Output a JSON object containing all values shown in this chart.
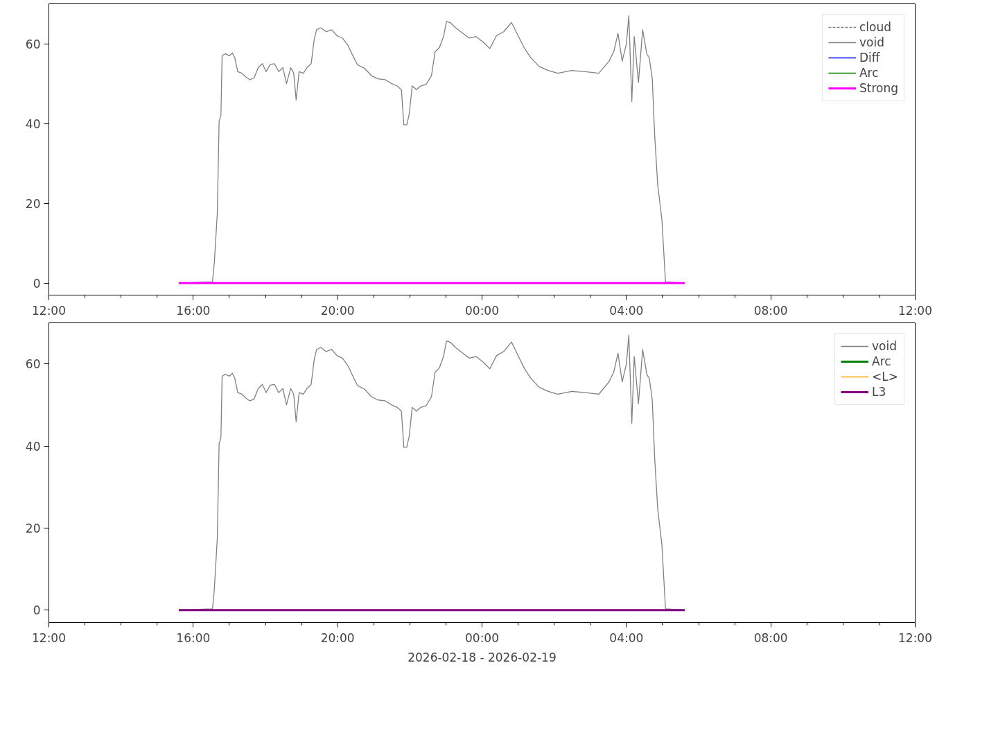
{
  "chart_data": [
    {
      "type": "line",
      "xlim": [
        "2026-02-18T12:00",
        "2026-02-19T12:00"
      ],
      "ylim": [
        -3,
        70
      ],
      "yticks": [
        0,
        20,
        40,
        60
      ],
      "xticks": [
        {
          "value": "2026-02-18T12:00",
          "label": "12:00"
        },
        {
          "value": "2026-02-18T13:00",
          "label": null
        },
        {
          "value": "2026-02-18T14:00",
          "label": null
        },
        {
          "value": "2026-02-18T15:00",
          "label": null
        },
        {
          "value": "2026-02-18T16:00",
          "label": "16:00"
        },
        {
          "value": "2026-02-18T17:00",
          "label": null
        },
        {
          "value": "2026-02-18T18:00",
          "label": null
        },
        {
          "value": "2026-02-18T19:00",
          "label": null
        },
        {
          "value": "2026-02-18T20:00",
          "label": "20:00"
        },
        {
          "value": "2026-02-18T21:00",
          "label": null
        },
        {
          "value": "2026-02-18T22:00",
          "label": null
        },
        {
          "value": "2026-02-18T23:00",
          "label": null
        },
        {
          "value": "2026-02-19T00:00",
          "label": "00:00"
        },
        {
          "value": "2026-02-19T01:00",
          "label": null
        },
        {
          "value": "2026-02-19T02:00",
          "label": null
        },
        {
          "value": "2026-02-19T03:00",
          "label": null
        },
        {
          "value": "2026-02-19T04:00",
          "label": "04:00"
        },
        {
          "value": "2026-02-19T05:00",
          "label": null
        },
        {
          "value": "2026-02-19T06:00",
          "label": null
        },
        {
          "value": "2026-02-19T07:00",
          "label": null
        },
        {
          "value": "2026-02-19T08:00",
          "label": "08:00"
        },
        {
          "value": "2026-02-19T09:00",
          "label": null
        },
        {
          "value": "2026-02-19T10:00",
          "label": null
        },
        {
          "value": "2026-02-19T11:00",
          "label": null
        },
        {
          "value": "2026-02-19T12:00",
          "label": "12:00"
        }
      ],
      "legend": "top right",
      "grid": false,
      "x": [
        "2026-02-18T15:36",
        "2026-02-18T16:32",
        "2026-02-18T16:35",
        "2026-02-18T16:40",
        "2026-02-18T16:43",
        "2026-02-18T16:46",
        "2026-02-18T16:48",
        "2026-02-18T16:53",
        "2026-02-18T17:00",
        "2026-02-18T17:05",
        "2026-02-18T17:09",
        "2026-02-18T17:14",
        "2026-02-18T17:21",
        "2026-02-18T17:27",
        "2026-02-18T17:34",
        "2026-02-18T17:41",
        "2026-02-18T17:48",
        "2026-02-18T17:55",
        "2026-02-18T18:01",
        "2026-02-18T18:08",
        "2026-02-18T18:15",
        "2026-02-18T18:22",
        "2026-02-18T18:29",
        "2026-02-18T18:35",
        "2026-02-18T18:42",
        "2026-02-18T18:47",
        "2026-02-18T18:51",
        "2026-02-18T18:56",
        "2026-02-18T19:03",
        "2026-02-18T19:09",
        "2026-02-18T19:16",
        "2026-02-18T19:21",
        "2026-02-18T19:25",
        "2026-02-18T19:32",
        "2026-02-18T19:41",
        "2026-02-18T19:50",
        "2026-02-18T19:59",
        "2026-02-18T20:08",
        "2026-02-18T20:17",
        "2026-02-18T20:24",
        "2026-02-18T20:33",
        "2026-02-18T20:45",
        "2026-02-18T20:56",
        "2026-02-18T21:07",
        "2026-02-18T21:19",
        "2026-02-18T21:30",
        "2026-02-18T21:39",
        "2026-02-18T21:46",
        "2026-02-18T21:50",
        "2026-02-18T21:55",
        "2026-02-18T21:59",
        "2026-02-18T22:04",
        "2026-02-18T22:11",
        "2026-02-18T22:18",
        "2026-02-18T22:27",
        "2026-02-18T22:36",
        "2026-02-18T22:42",
        "2026-02-18T22:49",
        "2026-02-18T22:56",
        "2026-02-18T23:01",
        "2026-02-18T23:07",
        "2026-02-18T23:16",
        "2026-02-18T23:28",
        "2026-02-18T23:39",
        "2026-02-18T23:50",
        "2026-02-19T00:02",
        "2026-02-19T00:13",
        "2026-02-19T00:24",
        "2026-02-19T00:36",
        "2026-02-19T00:49",
        "2026-02-19T00:58",
        "2026-02-19T01:10",
        "2026-02-19T01:21",
        "2026-02-19T01:35",
        "2026-02-19T01:50",
        "2026-02-19T02:06",
        "2026-02-19T02:29",
        "2026-02-19T02:52",
        "2026-02-19T03:14",
        "2026-02-19T03:31",
        "2026-02-19T03:39",
        "2026-02-19T03:46",
        "2026-02-19T03:53",
        "2026-02-19T04:00",
        "2026-02-19T04:04",
        "2026-02-19T04:09",
        "2026-02-19T04:13",
        "2026-02-19T04:20",
        "2026-02-19T04:27",
        "2026-02-19T04:34",
        "2026-02-19T04:38",
        "2026-02-19T04:43",
        "2026-02-19T04:47",
        "2026-02-19T04:52",
        "2026-02-19T04:59",
        "2026-02-19T05:05",
        "2026-02-19T05:37"
      ],
      "series": [
        {
          "name": "cloud",
          "color": "#808080",
          "line_style": "dashed",
          "values": [
            null,
            null,
            null,
            null,
            null,
            null,
            null,
            null,
            null,
            null,
            null,
            null,
            null,
            null,
            null,
            null,
            null,
            null,
            null,
            null,
            null,
            null,
            null,
            null,
            null,
            null,
            null,
            null,
            null,
            null,
            null,
            null,
            null,
            null,
            null,
            null,
            null,
            null,
            null,
            null,
            null,
            null,
            null,
            null,
            null,
            null,
            null,
            null,
            null,
            null,
            null,
            null,
            null,
            null,
            null,
            null,
            null,
            null,
            null,
            null,
            null,
            null,
            null,
            null,
            null,
            null,
            null,
            null,
            null,
            null,
            null,
            null,
            null,
            null,
            null,
            null,
            null,
            null,
            null,
            null,
            null,
            null,
            null,
            null,
            null,
            null,
            null,
            null,
            null,
            null,
            null,
            null,
            null,
            null,
            null,
            null,
            null
          ]
        },
        {
          "name": "void",
          "color": "#808080",
          "values": [
            0,
            0.3,
            5,
            17.6,
            40.6,
            42,
            57,
            57.5,
            57,
            57.7,
            56.5,
            53,
            52.6,
            51.7,
            51,
            51.4,
            54,
            55,
            53,
            54.8,
            55,
            53,
            54,
            50,
            54,
            52.6,
            45.9,
            53,
            52.6,
            54,
            55,
            61,
            63.5,
            64,
            63,
            63.5,
            62,
            61.4,
            59.6,
            57.4,
            54.7,
            53.8,
            52,
            51.2,
            51,
            50,
            49.4,
            48.5,
            39.7,
            39.7,
            42.4,
            49.4,
            48.5,
            49.4,
            49.8,
            52,
            58,
            59,
            61.8,
            65.6,
            65.3,
            64,
            62.6,
            61.4,
            61.8,
            60.4,
            58.8,
            62,
            63,
            65.3,
            62.6,
            59,
            56.5,
            54.3,
            53.3,
            52.6,
            53.3,
            53,
            52.6,
            55.6,
            58,
            62.6,
            55.6,
            60,
            67,
            45.5,
            61.8,
            50.3,
            63.5,
            57.4,
            56.5,
            51.2,
            37,
            24.7,
            15.9,
            0.3,
            0
          ]
        },
        {
          "name": "Diff",
          "color": "#0000ff",
          "values": [
            null,
            null,
            null,
            null,
            null,
            null,
            null,
            null,
            null,
            null,
            null,
            null,
            null,
            null,
            null,
            null,
            null,
            null,
            null,
            null,
            null,
            null,
            null,
            null,
            null,
            null,
            null,
            null,
            null,
            null,
            null,
            null,
            null,
            null,
            null,
            null,
            null,
            null,
            null,
            null,
            null,
            null,
            null,
            null,
            null,
            null,
            null,
            null,
            null,
            null,
            null,
            null,
            null,
            null,
            null,
            null,
            null,
            null,
            null,
            null,
            null,
            null,
            null,
            null,
            null,
            null,
            null,
            null,
            null,
            null,
            null,
            null,
            null,
            null,
            null,
            null,
            null,
            null,
            null,
            null,
            null,
            null,
            null,
            null,
            null,
            null,
            null,
            null,
            null,
            null,
            null,
            null,
            null,
            null,
            null,
            null,
            null
          ]
        },
        {
          "name": "Arc",
          "color": "#008000",
          "values": [
            null,
            null,
            null,
            null,
            null,
            null,
            null,
            null,
            null,
            null,
            null,
            null,
            null,
            null,
            null,
            null,
            null,
            null,
            null,
            null,
            null,
            null,
            null,
            null,
            null,
            null,
            null,
            null,
            null,
            null,
            null,
            null,
            null,
            null,
            null,
            null,
            null,
            null,
            null,
            null,
            null,
            null,
            null,
            null,
            null,
            null,
            null,
            null,
            null,
            null,
            null,
            null,
            null,
            null,
            null,
            null,
            null,
            null,
            null,
            null,
            null,
            null,
            null,
            null,
            null,
            null,
            null,
            null,
            null,
            null,
            null,
            null,
            null,
            null,
            null,
            null,
            null,
            null,
            null,
            null,
            null,
            null,
            null,
            null,
            null,
            null,
            null,
            null,
            null,
            null,
            null,
            null,
            null,
            null,
            null,
            null,
            null
          ]
        },
        {
          "name": "Strong",
          "color": "#ff00ff",
          "x": [
            "2026-02-18T15:36",
            "2026-02-19T05:37"
          ],
          "values": [
            0,
            0
          ]
        }
      ]
    },
    {
      "type": "line",
      "xlim": [
        "2026-02-18T12:00",
        "2026-02-19T12:00"
      ],
      "ylim": [
        -3,
        70
      ],
      "yticks": [
        0,
        20,
        40,
        60
      ],
      "xlabel": "2026-02-18 - 2026-02-19",
      "xticks": [
        {
          "value": "2026-02-18T12:00",
          "label": "12:00"
        },
        {
          "value": "2026-02-18T13:00",
          "label": null
        },
        {
          "value": "2026-02-18T14:00",
          "label": null
        },
        {
          "value": "2026-02-18T15:00",
          "label": null
        },
        {
          "value": "2026-02-18T16:00",
          "label": "16:00"
        },
        {
          "value": "2026-02-18T17:00",
          "label": null
        },
        {
          "value": "2026-02-18T18:00",
          "label": null
        },
        {
          "value": "2026-02-18T19:00",
          "label": null
        },
        {
          "value": "2026-02-18T20:00",
          "label": "20:00"
        },
        {
          "value": "2026-02-18T21:00",
          "label": null
        },
        {
          "value": "2026-02-18T22:00",
          "label": null
        },
        {
          "value": "2026-02-18T23:00",
          "label": null
        },
        {
          "value": "2026-02-19T00:00",
          "label": "00:00"
        },
        {
          "value": "2026-02-19T01:00",
          "label": null
        },
        {
          "value": "2026-02-19T02:00",
          "label": null
        },
        {
          "value": "2026-02-19T03:00",
          "label": null
        },
        {
          "value": "2026-02-19T04:00",
          "label": "04:00"
        },
        {
          "value": "2026-02-19T05:00",
          "label": null
        },
        {
          "value": "2026-02-19T06:00",
          "label": null
        },
        {
          "value": "2026-02-19T07:00",
          "label": null
        },
        {
          "value": "2026-02-19T08:00",
          "label": "08:00"
        },
        {
          "value": "2026-02-19T09:00",
          "label": null
        },
        {
          "value": "2026-02-19T10:00",
          "label": null
        },
        {
          "value": "2026-02-19T11:00",
          "label": null
        },
        {
          "value": "2026-02-19T12:00",
          "label": "12:00"
        }
      ],
      "legend": "top right",
      "grid": false,
      "x": [
        "2026-02-18T15:36",
        "2026-02-18T16:32",
        "2026-02-18T16:35",
        "2026-02-18T16:40",
        "2026-02-18T16:43",
        "2026-02-18T16:46",
        "2026-02-18T16:48",
        "2026-02-18T16:53",
        "2026-02-18T17:00",
        "2026-02-18T17:05",
        "2026-02-18T17:09",
        "2026-02-18T17:14",
        "2026-02-18T17:21",
        "2026-02-18T17:27",
        "2026-02-18T17:34",
        "2026-02-18T17:41",
        "2026-02-18T17:48",
        "2026-02-18T17:55",
        "2026-02-18T18:01",
        "2026-02-18T18:08",
        "2026-02-18T18:15",
        "2026-02-18T18:22",
        "2026-02-18T18:29",
        "2026-02-18T18:35",
        "2026-02-18T18:42",
        "2026-02-18T18:47",
        "2026-02-18T18:51",
        "2026-02-18T18:56",
        "2026-02-18T19:03",
        "2026-02-18T19:09",
        "2026-02-18T19:16",
        "2026-02-18T19:21",
        "2026-02-18T19:25",
        "2026-02-18T19:32",
        "2026-02-18T19:41",
        "2026-02-18T19:50",
        "2026-02-18T19:59",
        "2026-02-18T20:08",
        "2026-02-18T20:17",
        "2026-02-18T20:24",
        "2026-02-18T20:33",
        "2026-02-18T20:45",
        "2026-02-18T20:56",
        "2026-02-18T21:07",
        "2026-02-18T21:19",
        "2026-02-18T21:30",
        "2026-02-18T21:39",
        "2026-02-18T21:46",
        "2026-02-18T21:50",
        "2026-02-18T21:55",
        "2026-02-18T21:59",
        "2026-02-18T22:04",
        "2026-02-18T22:11",
        "2026-02-18T22:18",
        "2026-02-18T22:27",
        "2026-02-18T22:36",
        "2026-02-18T22:42",
        "2026-02-18T22:49",
        "2026-02-18T22:56",
        "2026-02-18T23:01",
        "2026-02-18T23:07",
        "2026-02-18T23:16",
        "2026-02-18T23:28",
        "2026-02-18T23:39",
        "2026-02-18T23:50",
        "2026-02-19T00:02",
        "2026-02-19T00:13",
        "2026-02-19T00:24",
        "2026-02-19T00:36",
        "2026-02-19T00:49",
        "2026-02-19T00:58",
        "2026-02-19T01:10",
        "2026-02-19T01:21",
        "2026-02-19T01:35",
        "2026-02-19T01:50",
        "2026-02-19T02:06",
        "2026-02-19T02:29",
        "2026-02-19T02:52",
        "2026-02-19T03:14",
        "2026-02-19T03:31",
        "2026-02-19T03:39",
        "2026-02-19T03:46",
        "2026-02-19T03:53",
        "2026-02-19T04:00",
        "2026-02-19T04:04",
        "2026-02-19T04:09",
        "2026-02-19T04:13",
        "2026-02-19T04:20",
        "2026-02-19T04:27",
        "2026-02-19T04:34",
        "2026-02-19T04:38",
        "2026-02-19T04:43",
        "2026-02-19T04:47",
        "2026-02-19T04:52",
        "2026-02-19T04:59",
        "2026-02-19T05:05",
        "2026-02-19T05:37"
      ],
      "series": [
        {
          "name": "void",
          "color": "#808080",
          "values": [
            0,
            0.3,
            5,
            17.6,
            40.6,
            42,
            57,
            57.5,
            57,
            57.7,
            56.5,
            53,
            52.6,
            51.7,
            51,
            51.4,
            54,
            55,
            53,
            54.8,
            55,
            53,
            54,
            50,
            54,
            52.6,
            45.9,
            53,
            52.6,
            54,
            55,
            61,
            63.5,
            64,
            63,
            63.5,
            62,
            61.4,
            59.6,
            57.4,
            54.7,
            53.8,
            52,
            51.2,
            51,
            50,
            49.4,
            48.5,
            39.7,
            39.7,
            42.4,
            49.4,
            48.5,
            49.4,
            49.8,
            52,
            58,
            59,
            61.8,
            65.6,
            65.3,
            64,
            62.6,
            61.4,
            61.8,
            60.4,
            58.8,
            62,
            63,
            65.3,
            62.6,
            59,
            56.5,
            54.3,
            53.3,
            52.6,
            53.3,
            53,
            52.6,
            55.6,
            58,
            62.6,
            55.6,
            60,
            67,
            45.5,
            61.8,
            50.3,
            63.5,
            57.4,
            56.5,
            51.2,
            37,
            24.7,
            15.9,
            0.3,
            0
          ]
        },
        {
          "name": "Arc",
          "color": "#008000",
          "values": [
            null,
            null,
            null,
            null,
            null,
            null,
            null,
            null,
            null,
            null,
            null,
            null,
            null,
            null,
            null,
            null,
            null,
            null,
            null,
            null,
            null,
            null,
            null,
            null,
            null,
            null,
            null,
            null,
            null,
            null,
            null,
            null,
            null,
            null,
            null,
            null,
            null,
            null,
            null,
            null,
            null,
            null,
            null,
            null,
            null,
            null,
            null,
            null,
            null,
            null,
            null,
            null,
            null,
            null,
            null,
            null,
            null,
            null,
            null,
            null,
            null,
            null,
            null,
            null,
            null,
            null,
            null,
            null,
            null,
            null,
            null,
            null,
            null,
            null,
            null,
            null,
            null,
            null,
            null,
            null,
            null,
            null,
            null,
            null,
            null,
            null,
            null,
            null,
            null,
            null,
            null,
            null,
            null,
            null,
            null,
            null,
            null
          ]
        },
        {
          "name": "<L>",
          "color": "#ffa500",
          "values": [
            null,
            null,
            null,
            null,
            null,
            null,
            null,
            null,
            null,
            null,
            null,
            null,
            null,
            null,
            null,
            null,
            null,
            null,
            null,
            null,
            null,
            null,
            null,
            null,
            null,
            null,
            null,
            null,
            null,
            null,
            null,
            null,
            null,
            null,
            null,
            null,
            null,
            null,
            null,
            null,
            null,
            null,
            null,
            null,
            null,
            null,
            null,
            null,
            null,
            null,
            null,
            null,
            null,
            null,
            null,
            null,
            null,
            null,
            null,
            null,
            null,
            null,
            null,
            null,
            null,
            null,
            null,
            null,
            null,
            null,
            null,
            null,
            null,
            null,
            null,
            null,
            null,
            null,
            null,
            null,
            null,
            null,
            null,
            null,
            null,
            null,
            null,
            null,
            null,
            null,
            null,
            null,
            null,
            null,
            null,
            null,
            null
          ]
        },
        {
          "name": "L3",
          "color": "#800080",
          "x": [
            "2026-02-18T15:36",
            "2026-02-19T05:37"
          ],
          "values": [
            0,
            0
          ]
        }
      ]
    }
  ]
}
